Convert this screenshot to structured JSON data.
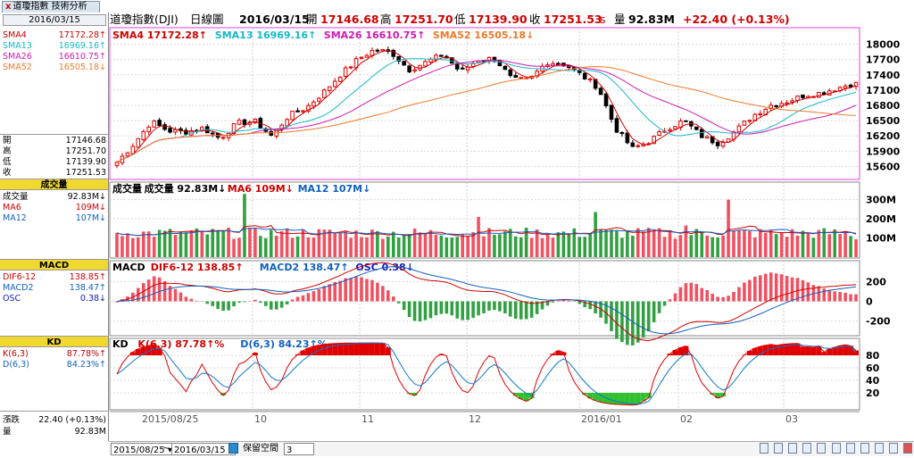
{
  "tab": {
    "close": "x",
    "label": "道瓊指數 技術分析"
  },
  "left_panel": {
    "date": "2016/03/15",
    "sma": [
      {
        "label": "SMA4",
        "value": "17172.28",
        "arrow": "↑",
        "color": "#d00000"
      },
      {
        "label": "SMA13",
        "value": "16969.16",
        "arrow": "↑",
        "color": "#17b8c8"
      },
      {
        "label": "SMA26",
        "value": "16610.75",
        "arrow": "↑",
        "color": "#d01ab0"
      },
      {
        "label": "SMA52",
        "value": "16505.18",
        "arrow": "↓",
        "color": "#ee7a2a"
      }
    ],
    "ohlc": [
      {
        "label": "開",
        "value": "17146.68"
      },
      {
        "label": "高",
        "value": "17251.70"
      },
      {
        "label": "低",
        "value": "17139.90"
      },
      {
        "label": "收",
        "value": "17251.53"
      }
    ],
    "volume_header": "成交量",
    "volume": [
      {
        "label": "成交量",
        "value": "92.83M",
        "arrow": "↓",
        "color": "#000000"
      },
      {
        "label": "MA6",
        "value": "109M",
        "arrow": "↓",
        "color": "#d00000"
      },
      {
        "label": "MA12",
        "value": "107M",
        "arrow": "↓",
        "color": "#1060c0"
      }
    ],
    "macd_header": "MACD",
    "macd": [
      {
        "label": "DIF6-12",
        "value": "138.85",
        "arrow": "↑",
        "color": "#d00000"
      },
      {
        "label": "MACD2",
        "value": "138.47",
        "arrow": "↑",
        "color": "#1060c0"
      },
      {
        "label": "OSC",
        "value": "0.38",
        "arrow": "↓",
        "color": "#1020c0"
      }
    ],
    "kd_header": "KD",
    "kd": [
      {
        "label": "K(6,3)",
        "value": "87.78%",
        "arrow": "↑",
        "color": "#d00000"
      },
      {
        "label": "D(6,3)",
        "value": "84.23%",
        "arrow": "↑",
        "color": "#1060c0"
      }
    ],
    "change_label": "漲跌",
    "change_value": "22.40 (+0.13%)",
    "vol_label": "量",
    "vol_value": "92.83M"
  },
  "top_bar": {
    "name": "道瓊指數(DJI)",
    "period": "日線圖",
    "date": "2016/03/15",
    "open_label": "開",
    "open": "17146.68",
    "high_label": "高",
    "high": "17251.70",
    "low_label": "低",
    "low": "17139.90",
    "close_label": "收",
    "close": "17251.53",
    "close_suffix": "s",
    "volume_label": "量",
    "volume": "92.83M",
    "change": "+22.40 (+0.13%)"
  },
  "price_panel_legend": [
    {
      "label": "SMA4",
      "value": "17172.28",
      "arrow": "↑",
      "color": "#d00000"
    },
    {
      "label": "SMA13",
      "value": "16969.16",
      "arrow": "↑",
      "color": "#17b8c8"
    },
    {
      "label": "SMA26",
      "value": "16610.75",
      "arrow": "↑",
      "color": "#d01ab0"
    },
    {
      "label": "SMA52",
      "value": "16505.18",
      "arrow": "↓",
      "color": "#ee7a2a"
    }
  ],
  "volume_panel_legend": [
    {
      "label": "成交量",
      "value": "",
      "arrow": "",
      "color": "#000000"
    },
    {
      "label": "成交量",
      "value": "92.83M",
      "arrow": "↓",
      "color": "#000000"
    },
    {
      "label": "MA6",
      "value": "109M",
      "arrow": "↓",
      "color": "#d00000"
    },
    {
      "label": "MA12",
      "value": "107M",
      "arrow": "↓",
      "color": "#1060c0"
    }
  ],
  "macd_panel_legend": [
    {
      "label": "MACD",
      "value": "",
      "arrow": "",
      "color": "#000000"
    },
    {
      "label": "DIF6-12",
      "value": "138.85",
      "arrow": "↑",
      "color": "#d00000"
    },
    {
      "label": "MACD2",
      "value": "138.47",
      "arrow": "↑",
      "color": "#1060c0"
    },
    {
      "label": "OSC",
      "value": "0.38",
      "arrow": "↓",
      "color": "#1020c0"
    }
  ],
  "kd_panel_legend": [
    {
      "label": "KD",
      "value": "",
      "arrow": "",
      "color": "#000000"
    },
    {
      "label": "K(6,3)",
      "value": "87.78",
      "arrow": "↑%",
      "color": "#d00000"
    },
    {
      "label": "D(6,3)",
      "value": "84.23",
      "arrow": "↑%",
      "color": "#1060c0"
    }
  ],
  "x_axis_labels": [
    "2015/08/25",
    "10",
    "11",
    "12",
    "2016/01",
    "02",
    "03"
  ],
  "bottom_bar": {
    "start_date": "2015/08/25",
    "tilde": "~",
    "end_date": "2016/03/15",
    "keep_space_label": "保留空間",
    "keep_space_value": "3"
  },
  "toolbar_icons": [
    "zoom-in-icon",
    "zoom-out-icon",
    "period-icon",
    "draw-icon",
    "indicator-icon",
    "grid-icon",
    "print-icon",
    "save-icon",
    "settings-icon",
    "help-icon",
    "close-icon"
  ],
  "chart_data": {
    "type": "candlestick",
    "period": "daily",
    "date_range": [
      "2015/08/25",
      "2016/03/15"
    ],
    "x_ticks": [
      "2015/08/25",
      "10",
      "11",
      "12",
      "2016/01",
      "02",
      "03"
    ],
    "panels": [
      {
        "name": "price",
        "y_ticks": [
          15600,
          15900,
          16200,
          16500,
          16800,
          17100,
          17400,
          17700,
          18000
        ],
        "ylim": [
          15450,
          18080
        ],
        "series": [
          "SMA4",
          "SMA13",
          "SMA26",
          "SMA52"
        ],
        "close_anchors": [
          15680,
          16050,
          16480,
          16300,
          16280,
          16350,
          16150,
          16450,
          16490,
          16200,
          16600,
          16750,
          17050,
          17400,
          17700,
          17900,
          17830,
          17500,
          17650,
          17800,
          17450,
          17700,
          17720,
          17300,
          17300,
          17650,
          17620,
          17400,
          17150,
          16350,
          15950,
          16100,
          16350,
          16500,
          16200,
          16050,
          16300,
          16600,
          16800,
          16880,
          17000,
          17050,
          17150,
          17251.53
        ]
      },
      {
        "name": "volume",
        "y_ticks": [
          "100M",
          "200M",
          "300M"
        ],
        "ylim": [
          0,
          340
        ],
        "units": "M",
        "latest": 92.83
      },
      {
        "name": "macd",
        "y_ticks": [
          -200,
          0,
          200
        ],
        "ylim": [
          -320,
          330
        ],
        "latest": {
          "DIF6-12": 138.85,
          "MACD2": 138.47,
          "OSC": 0.38
        }
      },
      {
        "name": "kd",
        "y_ticks": [
          20,
          40,
          60,
          80
        ],
        "ylim": [
          0,
          100
        ],
        "latest": {
          "K(6,3)": 87.78,
          "D(6,3)": 84.23
        }
      }
    ]
  }
}
